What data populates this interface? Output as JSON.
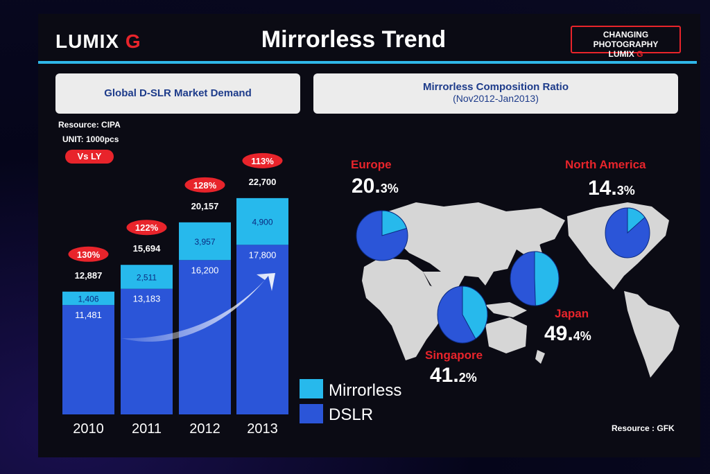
{
  "header": {
    "logo_left": {
      "word": "LUMIX",
      "letter": "G"
    },
    "title": "Mirrorless Trend",
    "badge": {
      "line1": "CHANGING PHOTOGRAPHY",
      "line2_word": "LUMIX",
      "line2_letter": "G"
    }
  },
  "left_panel": {
    "heading": "Global D-SLR Market Demand",
    "resource": "Resource: CIPA",
    "unit": "UNIT: 1000pcs",
    "vs_label": "Vs LY"
  },
  "right_panel": {
    "heading": "Mirrorless Composition Ratio",
    "subheading": "(Nov2012-Jan2013)",
    "resource": "Resource : GFK"
  },
  "legend": [
    {
      "label": "Mirrorless",
      "color": "#27b9ec"
    },
    {
      "label": "DSLR",
      "color": "#2b55d8"
    }
  ],
  "chart_data": [
    {
      "type": "bar",
      "stacked": true,
      "categories": [
        "2010",
        "2011",
        "2012",
        "2013"
      ],
      "series": [
        {
          "name": "DSLR",
          "values": [
            11481,
            13183,
            16200,
            17800
          ],
          "labels": [
            "11,481",
            "13,183",
            "16,200",
            "17,800"
          ],
          "color": "#2b55d8"
        },
        {
          "name": "Mirrorless",
          "values": [
            1406,
            2511,
            3957,
            4900
          ],
          "labels": [
            "1,406",
            "2,511",
            "3,957",
            "4,900"
          ],
          "color": "#27b9ec"
        }
      ],
      "totals": [
        "12,887",
        "15,694",
        "20,157",
        "22,700"
      ],
      "vs_ly": [
        "130%",
        "122%",
        "128%",
        "113%"
      ],
      "ylim": [
        0,
        24000
      ]
    },
    {
      "type": "pie",
      "regions": [
        {
          "name": "Europe",
          "mirrorless_pct": 20.3,
          "big": "20.",
          "small": "3%"
        },
        {
          "name": "North America",
          "mirrorless_pct": 14.3,
          "big": "14.",
          "small": "3%"
        },
        {
          "name": "Singapore",
          "mirrorless_pct": 41.2,
          "big": "41.",
          "small": "2%"
        },
        {
          "name": "Japan",
          "mirrorless_pct": 49.4,
          "big": "49.",
          "small": "4%"
        }
      ]
    }
  ]
}
